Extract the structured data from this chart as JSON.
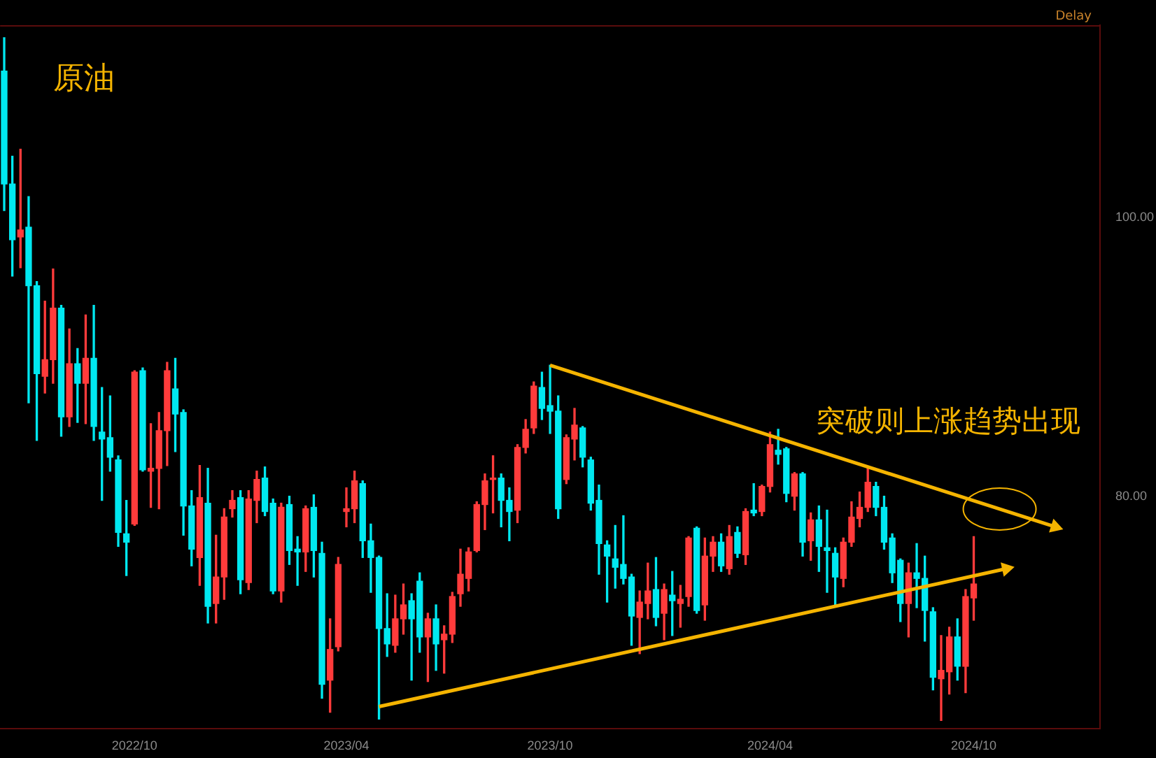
{
  "chart_data": {
    "type": "candlestick",
    "title": "原油",
    "annotations": [
      "Delay",
      "突破则上涨趋势出现"
    ],
    "categories": [
      null,
      null,
      null,
      null,
      null,
      null,
      null,
      null,
      null,
      null,
      null,
      null,
      null,
      null,
      null,
      null,
      "2022/10",
      null,
      null,
      null,
      null,
      null,
      null,
      null,
      null,
      null,
      null,
      null,
      null,
      null,
      null,
      null,
      null,
      null,
      null,
      null,
      null,
      null,
      null,
      null,
      null,
      null,
      "2023/04",
      null,
      null,
      null,
      null,
      null,
      null,
      null,
      null,
      null,
      null,
      null,
      null,
      null,
      null,
      null,
      null,
      null,
      null,
      null,
      null,
      null,
      null,
      null,
      null,
      "2023/10",
      null,
      null,
      null,
      null,
      null,
      null,
      null,
      null,
      null,
      null,
      null,
      null,
      null,
      null,
      null,
      null,
      null,
      null,
      null,
      null,
      null,
      null,
      null,
      null,
      null,
      null,
      "2024/04",
      null,
      null,
      null,
      null,
      null,
      null,
      null,
      null,
      null,
      null,
      null,
      null,
      null,
      null,
      null,
      null,
      null,
      null,
      null,
      null,
      null,
      null,
      null,
      null,
      "2024/10",
      null,
      null,
      null,
      null,
      null,
      null,
      null,
      null,
      null,
      null,
      null,
      null,
      null,
      null,
      null
    ],
    "ohlc": [
      [
        110.5,
        112.9,
        100.5,
        102.4
      ],
      [
        102.4,
        104.4,
        95.8,
        98.4
      ],
      [
        98.6,
        104.9,
        96.4,
        99.1
      ],
      [
        99.3,
        101.5,
        86.7,
        95.1
      ],
      [
        95.1,
        95.4,
        84.0,
        88.8
      ],
      [
        88.6,
        94.0,
        87.4,
        89.8
      ],
      [
        89.8,
        96.3,
        88.1,
        93.5
      ],
      [
        93.5,
        93.7,
        84.3,
        85.7
      ],
      [
        85.7,
        92.0,
        85.0,
        89.5
      ],
      [
        89.5,
        90.6,
        85.3,
        88.1
      ],
      [
        88.1,
        93.0,
        85.2,
        89.9
      ],
      [
        89.9,
        93.7,
        84.0,
        85.0
      ],
      [
        84.6,
        87.8,
        79.7,
        84.1
      ],
      [
        84.2,
        87.2,
        81.8,
        82.8
      ],
      [
        82.6,
        82.9,
        76.4,
        77.4
      ],
      [
        77.3,
        79.7,
        74.3,
        76.7
      ],
      [
        78.0,
        89.0,
        77.9,
        88.9
      ],
      [
        89.0,
        89.2,
        81.8,
        81.9
      ],
      [
        81.8,
        85.2,
        79.2,
        82.0
      ],
      [
        82.0,
        86.0,
        79.1,
        84.7
      ],
      [
        84.7,
        89.6,
        82.2,
        89.0
      ],
      [
        87.7,
        89.9,
        83.2,
        85.9
      ],
      [
        86.0,
        86.2,
        77.2,
        79.3
      ],
      [
        79.3,
        80.4,
        75.0,
        76.2
      ],
      [
        75.6,
        82.2,
        73.6,
        79.9
      ],
      [
        79.5,
        82.0,
        70.9,
        72.1
      ],
      [
        72.3,
        77.2,
        70.9,
        74.2
      ],
      [
        74.2,
        79.1,
        72.6,
        78.5
      ],
      [
        79.1,
        80.4,
        78.5,
        79.7
      ],
      [
        79.9,
        80.4,
        73.0,
        74.0
      ],
      [
        73.8,
        80.4,
        73.3,
        79.8
      ],
      [
        79.7,
        81.8,
        78.1,
        81.2
      ],
      [
        81.3,
        82.1,
        78.6,
        78.9
      ],
      [
        79.5,
        79.8,
        73.0,
        73.2
      ],
      [
        73.2,
        79.5,
        72.4,
        79.2
      ],
      [
        79.4,
        80.0,
        75.1,
        76.1
      ],
      [
        76.2,
        77.1,
        73.6,
        76.0
      ],
      [
        76.0,
        79.3,
        74.6,
        79.1
      ],
      [
        79.2,
        80.1,
        74.2,
        76.1
      ],
      [
        75.9,
        76.7,
        65.5,
        66.5
      ],
      [
        66.8,
        71.2,
        64.5,
        69.0
      ],
      [
        69.2,
        75.6,
        68.9,
        75.1
      ],
      [
        78.9,
        80.6,
        77.8,
        79.1
      ],
      [
        79.1,
        81.8,
        78.1,
        81.1
      ],
      [
        80.9,
        81.1,
        75.6,
        76.8
      ],
      [
        76.8,
        78.0,
        73.1,
        75.6
      ],
      [
        75.6,
        75.7,
        64.0,
        70.5
      ],
      [
        70.5,
        73.0,
        68.5,
        69.4
      ],
      [
        69.3,
        72.9,
        68.8,
        71.2
      ],
      [
        71.2,
        73.7,
        70.1,
        72.2
      ],
      [
        72.5,
        73.0,
        66.8,
        71.2
      ],
      [
        73.9,
        74.5,
        68.8,
        69.9
      ],
      [
        69.9,
        71.6,
        66.7,
        71.2
      ],
      [
        71.2,
        72.2,
        67.5,
        69.4
      ],
      [
        69.7,
        70.7,
        67.3,
        70.1
      ],
      [
        70.1,
        73.1,
        69.5,
        72.8
      ],
      [
        73.0,
        76.2,
        72.1,
        74.4
      ],
      [
        74.1,
        76.3,
        73.2,
        76.0
      ],
      [
        76.1,
        79.6,
        76.0,
        79.4
      ],
      [
        79.4,
        81.6,
        77.6,
        81.1
      ],
      [
        81.2,
        82.9,
        78.8,
        81.3
      ],
      [
        81.3,
        81.6,
        77.8,
        79.7
      ],
      [
        79.7,
        80.6,
        76.8,
        78.9
      ],
      [
        79.0,
        83.7,
        78.1,
        83.5
      ],
      [
        83.5,
        85.5,
        83.1,
        84.8
      ],
      [
        84.9,
        88.2,
        84.5,
        87.9
      ],
      [
        87.8,
        88.9,
        85.5,
        86.3
      ],
      [
        86.5,
        89.4,
        84.5,
        86.1
      ],
      [
        86.1,
        87.2,
        78.4,
        79.1
      ],
      [
        81.2,
        84.4,
        80.9,
        84.2
      ],
      [
        84.1,
        86.3,
        82.6,
        85.1
      ],
      [
        84.9,
        85.0,
        82.1,
        82.8
      ],
      [
        82.6,
        82.8,
        79.0,
        79.5
      ],
      [
        79.7,
        80.8,
        74.4,
        76.6
      ],
      [
        76.5,
        76.8,
        72.4,
        75.7
      ],
      [
        75.5,
        77.9,
        73.4,
        74.9
      ],
      [
        75.1,
        78.6,
        73.7,
        74.1
      ],
      [
        74.2,
        74.4,
        69.3,
        71.4
      ],
      [
        71.3,
        73.2,
        68.7,
        72.4
      ],
      [
        72.3,
        75.2,
        71.2,
        73.2
      ],
      [
        73.3,
        75.6,
        70.7,
        71.3
      ],
      [
        71.6,
        73.7,
        69.7,
        73.3
      ],
      [
        72.9,
        74.6,
        70.0,
        72.5
      ],
      [
        72.3,
        73.6,
        70.6,
        72.6
      ],
      [
        72.8,
        77.1,
        72.1,
        77.0
      ],
      [
        77.7,
        77.8,
        71.6,
        71.8
      ],
      [
        72.2,
        77.0,
        71.1,
        75.7
      ],
      [
        75.7,
        77.1,
        74.6,
        76.7
      ],
      [
        76.7,
        77.3,
        74.6,
        75.0
      ],
      [
        74.8,
        77.9,
        74.4,
        77.1
      ],
      [
        77.4,
        77.8,
        75.6,
        75.9
      ],
      [
        75.8,
        79.1,
        75.1,
        78.9
      ],
      [
        79.0,
        80.9,
        78.6,
        78.8
      ],
      [
        78.9,
        80.8,
        78.6,
        80.7
      ],
      [
        80.7,
        84.6,
        80.3,
        83.7
      ],
      [
        83.3,
        84.8,
        82.3,
        83.0
      ],
      [
        83.4,
        83.5,
        79.6,
        80.2
      ],
      [
        80.0,
        81.7,
        79.0,
        81.6
      ],
      [
        81.6,
        81.7,
        75.7,
        76.7
      ],
      [
        76.8,
        78.8,
        75.4,
        78.3
      ],
      [
        78.3,
        79.3,
        74.6,
        76.4
      ],
      [
        76.3,
        79.0,
        73.1,
        76.1
      ],
      [
        75.9,
        76.3,
        72.1,
        74.2
      ],
      [
        74.1,
        77.0,
        73.5,
        76.7
      ],
      [
        76.7,
        79.6,
        76.4,
        78.5
      ],
      [
        78.4,
        80.3,
        77.8,
        79.2
      ],
      [
        79.2,
        82.0,
        78.9,
        81.0
      ],
      [
        80.7,
        81.0,
        78.6,
        79.2
      ],
      [
        79.2,
        80.0,
        76.2,
        76.7
      ],
      [
        77.0,
        77.3,
        73.8,
        74.5
      ],
      [
        75.4,
        75.5,
        71.0,
        72.3
      ],
      [
        72.3,
        75.2,
        69.9,
        74.5
      ],
      [
        74.5,
        76.6,
        72.0,
        74.1
      ],
      [
        74.1,
        75.7,
        69.6,
        71.8
      ],
      [
        71.7,
        72.0,
        66.1,
        67.0
      ],
      [
        66.9,
        70.0,
        63.9,
        67.5
      ],
      [
        67.4,
        70.6,
        65.8,
        69.9
      ],
      [
        69.9,
        71.2,
        66.8,
        67.8
      ],
      [
        67.8,
        73.3,
        65.9,
        72.8
      ],
      [
        72.7,
        77.1,
        71.1,
        73.7
      ],
      null,
      null,
      null,
      null,
      null,
      null,
      null,
      null,
      null,
      null,
      null,
      null,
      null,
      null,
      null
    ],
    "series": [
      {
        "type": "line",
        "color": "#f5b400",
        "values": [
          null,
          null,
          null,
          null,
          null,
          null,
          null,
          null,
          null,
          null,
          null,
          null,
          null,
          null,
          null,
          null,
          null,
          null,
          null,
          null,
          null,
          null,
          null,
          null,
          null,
          null,
          null,
          null,
          null,
          null,
          null,
          null,
          null,
          null,
          null,
          null,
          null,
          null,
          null,
          null,
          null,
          null,
          null,
          null,
          null,
          null,
          null,
          null,
          null,
          null,
          null,
          null,
          null,
          null,
          null,
          null,
          null,
          null,
          null,
          null,
          null,
          null,
          null,
          null,
          null,
          null,
          null,
          89.4,
          null,
          null,
          null,
          null,
          null,
          null,
          null,
          null,
          null,
          null,
          null,
          null,
          null,
          null,
          null,
          null,
          null,
          null,
          null,
          null,
          null,
          null,
          null,
          null,
          null,
          null,
          null,
          null,
          null,
          null,
          null,
          null,
          null,
          null,
          null,
          null,
          null,
          null,
          null,
          null,
          null,
          null,
          null,
          null,
          null,
          null,
          null,
          null,
          null,
          null,
          null,
          null,
          null,
          null,
          null,
          null,
          null,
          null,
          null,
          null,
          null,
          77.8,
          null,
          null,
          null,
          null,
          null
        ]
      },
      {
        "type": "line",
        "color": "#f5b400",
        "values": [
          null,
          null,
          null,
          null,
          null,
          null,
          null,
          null,
          null,
          null,
          null,
          null,
          null,
          null,
          null,
          null,
          null,
          null,
          null,
          null,
          null,
          null,
          null,
          null,
          null,
          null,
          null,
          null,
          null,
          null,
          null,
          null,
          null,
          null,
          null,
          null,
          null,
          null,
          null,
          null,
          null,
          null,
          null,
          null,
          null,
          null,
          64.9,
          null,
          null,
          null,
          null,
          null,
          null,
          null,
          null,
          null,
          null,
          null,
          null,
          null,
          null,
          null,
          null,
          null,
          null,
          null,
          null,
          null,
          null,
          null,
          null,
          null,
          null,
          null,
          null,
          null,
          null,
          null,
          null,
          null,
          null,
          null,
          null,
          null,
          null,
          null,
          null,
          null,
          null,
          null,
          null,
          null,
          null,
          null,
          null,
          null,
          null,
          null,
          null,
          null,
          null,
          null,
          null,
          null,
          null,
          null,
          null,
          null,
          null,
          null,
          null,
          null,
          null,
          null,
          null,
          null,
          null,
          null,
          null,
          null,
          null,
          null,
          null,
          74.8,
          null,
          null,
          null,
          null,
          null,
          null,
          null,
          null,
          null,
          null,
          null
        ]
      }
    ],
    "ylim": [
      63.3,
      113.8
    ],
    "yticks": [
      {
        "value": 80,
        "label": "80.00"
      },
      {
        "value": 100,
        "label": "100.00"
      }
    ],
    "legend": false
  }
}
